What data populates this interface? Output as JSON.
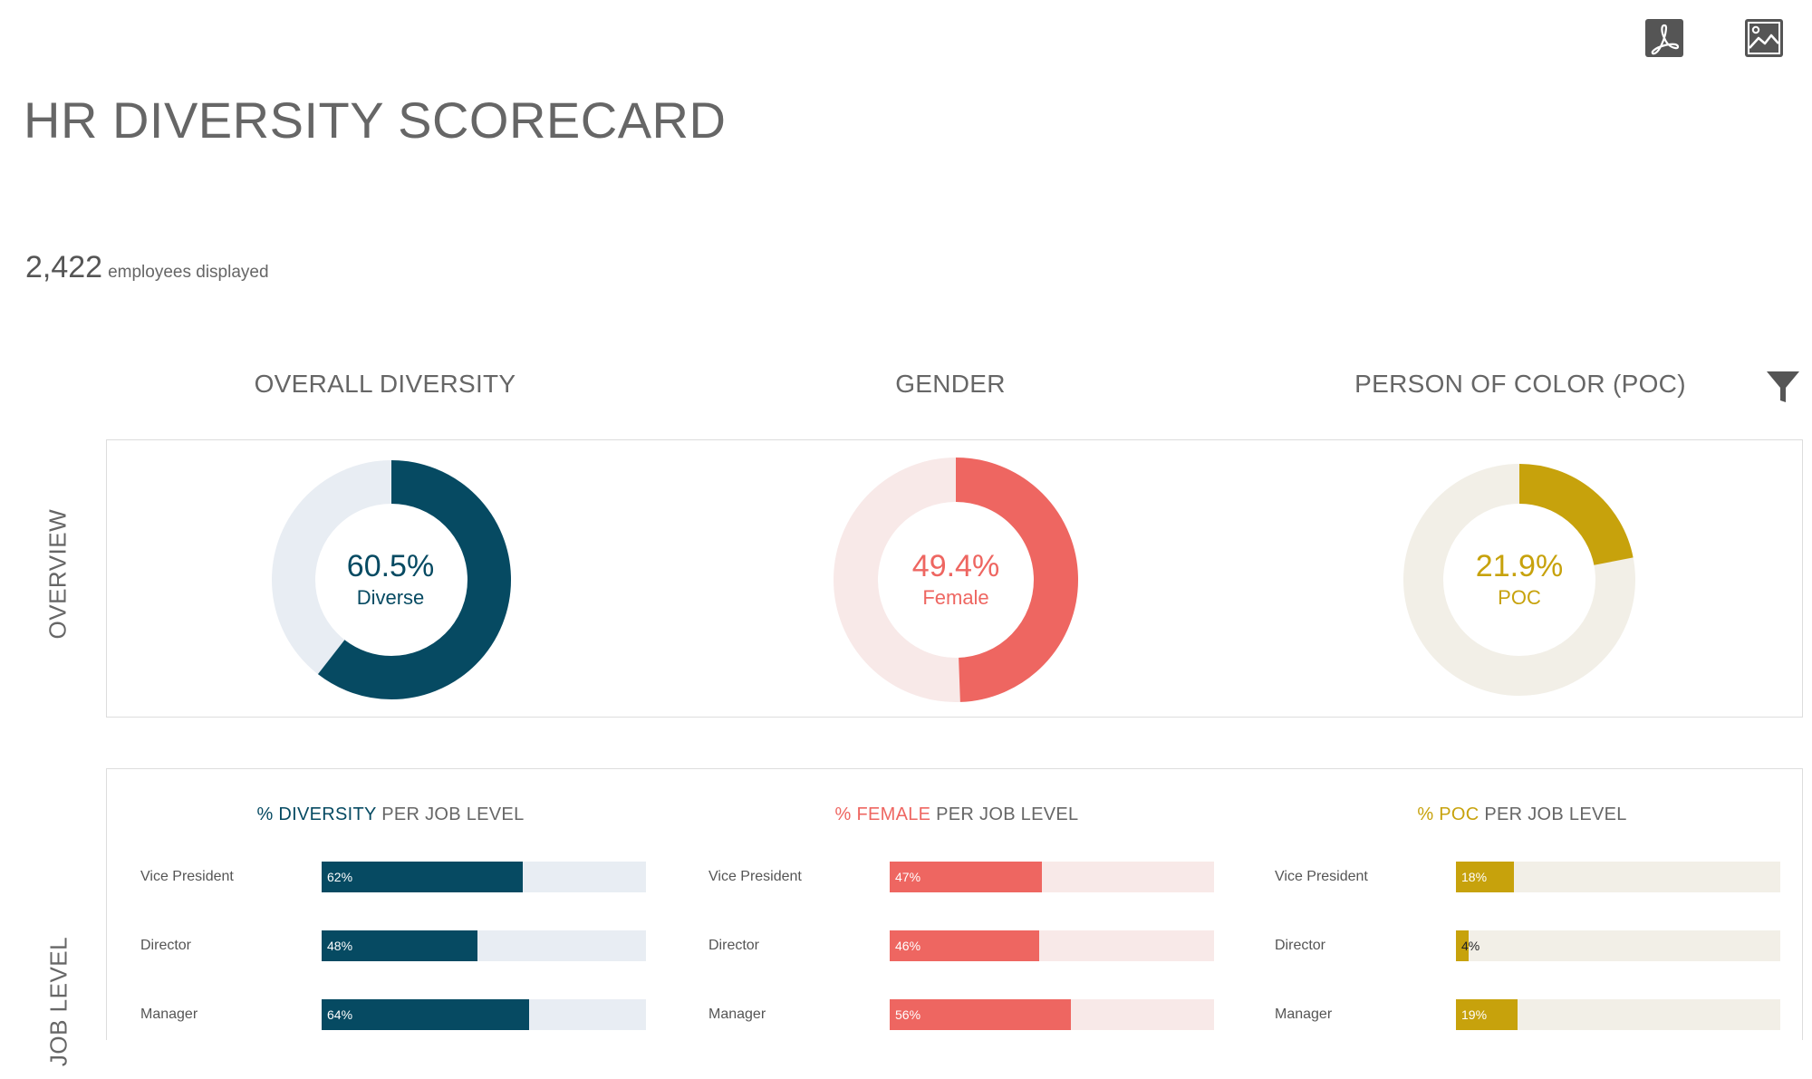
{
  "toolbar": {
    "export_pdf_icon": "pdf-icon",
    "export_image_icon": "image-icon"
  },
  "title": "HR DIVERSITY SCORECARD",
  "employees": {
    "count": "2,422",
    "label": "employees displayed"
  },
  "filter_icon": "filter-icon",
  "colors": {
    "diversity": "#064a62",
    "diversity_light": "#e8edf3",
    "female": "#ee6661",
    "female_light": "#f8e9e8",
    "poc": "#c7a20c",
    "poc_light": "#f2efe7",
    "text_gray": "#666666"
  },
  "sections": {
    "overall": "OVERALL DIVERSITY",
    "gender": "GENDER",
    "poc": "PERSON OF COLOR (POC)"
  },
  "row_labels": {
    "overview": "OVERVIEW",
    "job_level": "JOB LEVEL"
  },
  "donuts": [
    {
      "value": "60.5%",
      "label": "Diverse",
      "fraction": 0.605
    },
    {
      "value": "49.4%",
      "label": "Female",
      "fraction": 0.494
    },
    {
      "value": "21.9%",
      "label": "POC",
      "fraction": 0.219
    }
  ],
  "job_level": {
    "diversity": {
      "highlight": "% DIVERSITY",
      "rest": " PER JOB LEVEL"
    },
    "female": {
      "highlight": "% FEMALE",
      "rest": " PER JOB LEVEL"
    },
    "poc": {
      "highlight": "% POC",
      "rest": " PER JOB LEVEL"
    }
  },
  "chart_data": [
    {
      "type": "bar",
      "title": "% DIVERSITY PER JOB LEVEL",
      "categories": [
        "Vice President",
        "Director",
        "Manager"
      ],
      "values": [
        62,
        48,
        64
      ],
      "value_labels": [
        "62%",
        "48%",
        "64%"
      ],
      "xlim": [
        0,
        100
      ]
    },
    {
      "type": "bar",
      "title": "% FEMALE PER JOB LEVEL",
      "categories": [
        "Vice President",
        "Director",
        "Manager"
      ],
      "values": [
        47,
        46,
        56
      ],
      "value_labels": [
        "47%",
        "46%",
        "56%"
      ],
      "xlim": [
        0,
        100
      ]
    },
    {
      "type": "bar",
      "title": "% POC PER JOB LEVEL",
      "categories": [
        "Vice President",
        "Director",
        "Manager"
      ],
      "values": [
        18,
        4,
        19
      ],
      "value_labels": [
        "18%",
        "4%",
        "19%"
      ],
      "xlim": [
        0,
        100
      ]
    }
  ]
}
